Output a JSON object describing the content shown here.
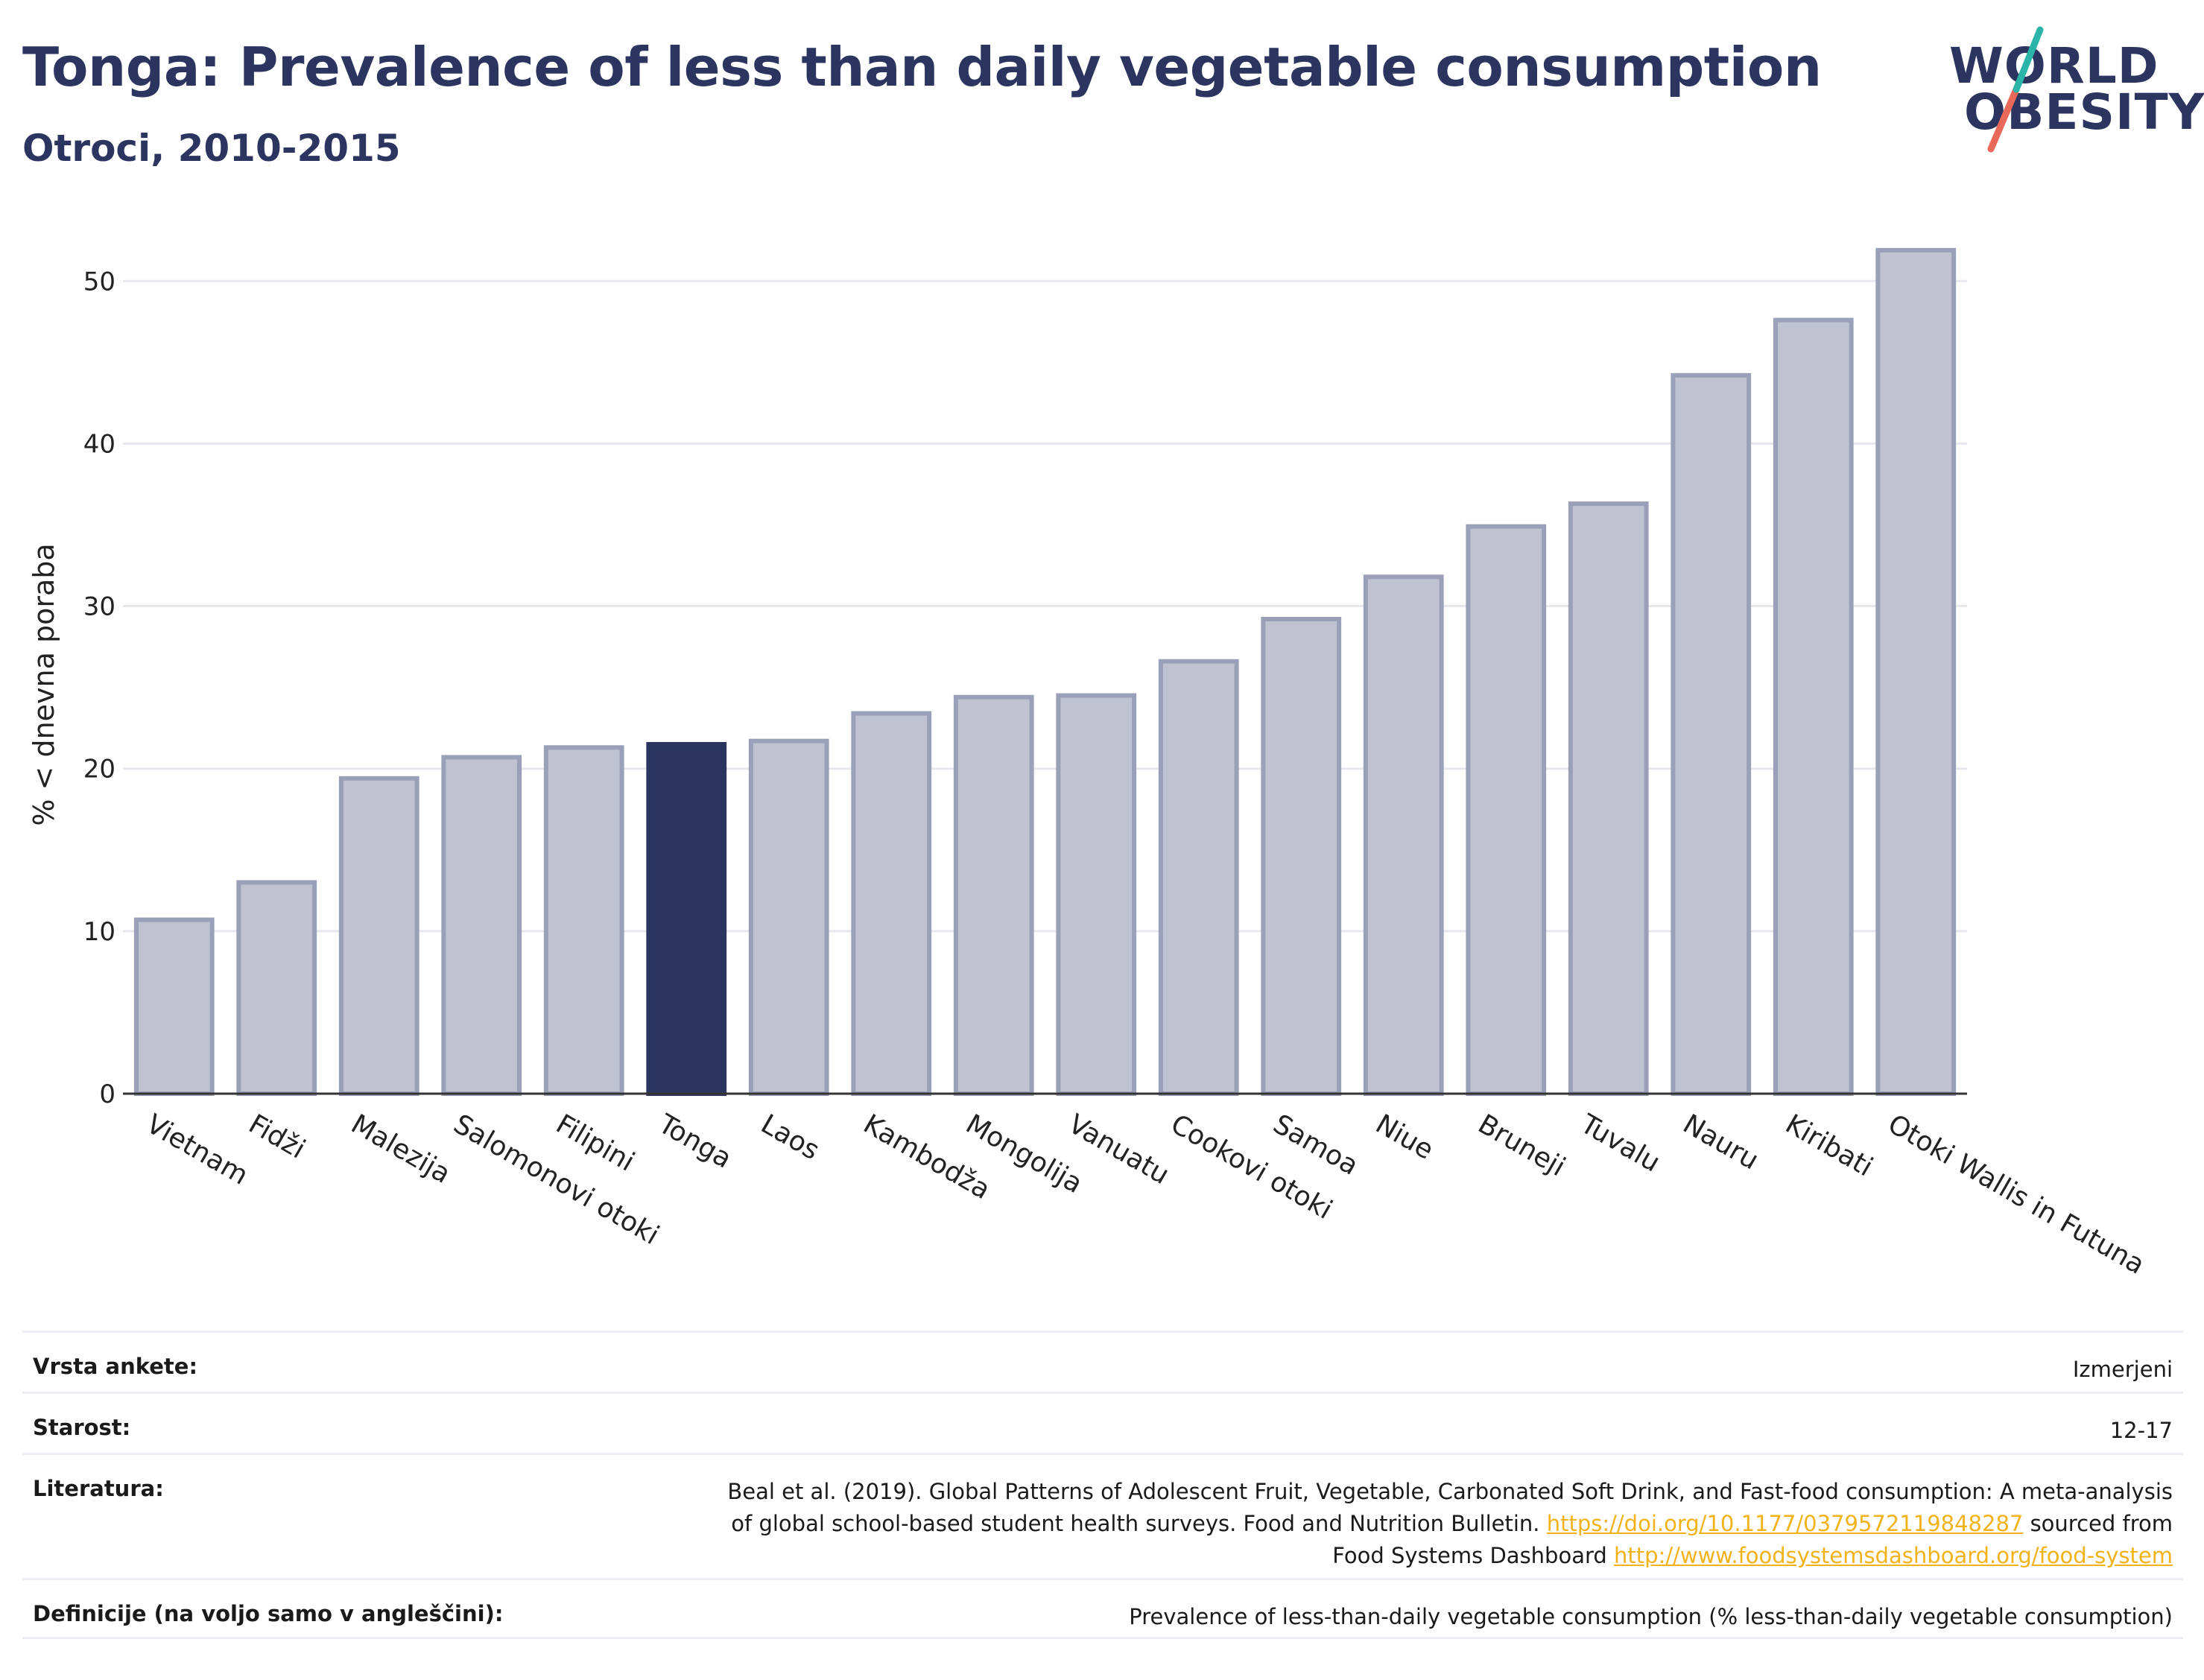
{
  "header": {
    "title": "Tonga: Prevalence of less than daily vegetable consumption",
    "subtitle": "Otroci, 2010-2015"
  },
  "logo": {
    "line1": "WORLD",
    "line2": "OBESITY",
    "colors": {
      "text": "#2b3560",
      "slash_top": "#2bb5a8",
      "slash_bottom": "#e8685a"
    }
  },
  "chart_data": {
    "type": "bar",
    "ylabel": "% < dnevna poraba",
    "xlabel": "",
    "ylim": [
      0,
      54
    ],
    "yticks": [
      0,
      10,
      20,
      30,
      40,
      50
    ],
    "grid": true,
    "highlight": "Tonga",
    "colors": {
      "bar": "#bfc3d1",
      "bar_edge": "#9aa0b8",
      "highlight": "#2b3560",
      "grid": "#e6e8ee",
      "axis": "#333333"
    },
    "categories": [
      "Vietnam",
      "Fidži",
      "Malezija",
      "Salomonovi otoki",
      "Filipini",
      "Tonga",
      "Laos",
      "Kambodža",
      "Mongolija",
      "Vanuatu",
      "Cookovi otoki",
      "Samoa",
      "Niue",
      "Bruneji",
      "Tuvalu",
      "Nauru",
      "Kiribati",
      "Otoki Wallis in Futuna"
    ],
    "values": [
      10.7,
      13.0,
      19.4,
      20.7,
      21.3,
      21.5,
      21.7,
      23.4,
      24.4,
      24.5,
      26.6,
      29.2,
      31.8,
      34.9,
      36.3,
      44.2,
      47.6,
      51.9
    ]
  },
  "meta": {
    "rows": [
      {
        "label": "Vrsta ankete:",
        "value": "Izmerjeni"
      },
      {
        "label": "Starost:",
        "value": "12-17"
      },
      {
        "label": "Literatura:",
        "value_line1": "Beal et al. (2019). Global Patterns of Adolescent Fruit, Vegetable, Carbonated Soft Drink, and Fast-food consumption: A meta-analysis",
        "value_line2_pre": "of global school-based student health surveys. Food and Nutrition Bulletin. ",
        "link1": "https://doi.org/10.1177/0379572119848287",
        "value_line2_post": " sourced from",
        "value_line3_pre": "Food Systems Dashboard ",
        "link2": "http://www.foodsystemsdashboard.org/food-system"
      },
      {
        "label": "Definicije (na voljo samo v angleščini):",
        "value": "Prevalence of less-than-daily vegetable consumption (% less-than-daily vegetable consumption)"
      }
    ]
  }
}
